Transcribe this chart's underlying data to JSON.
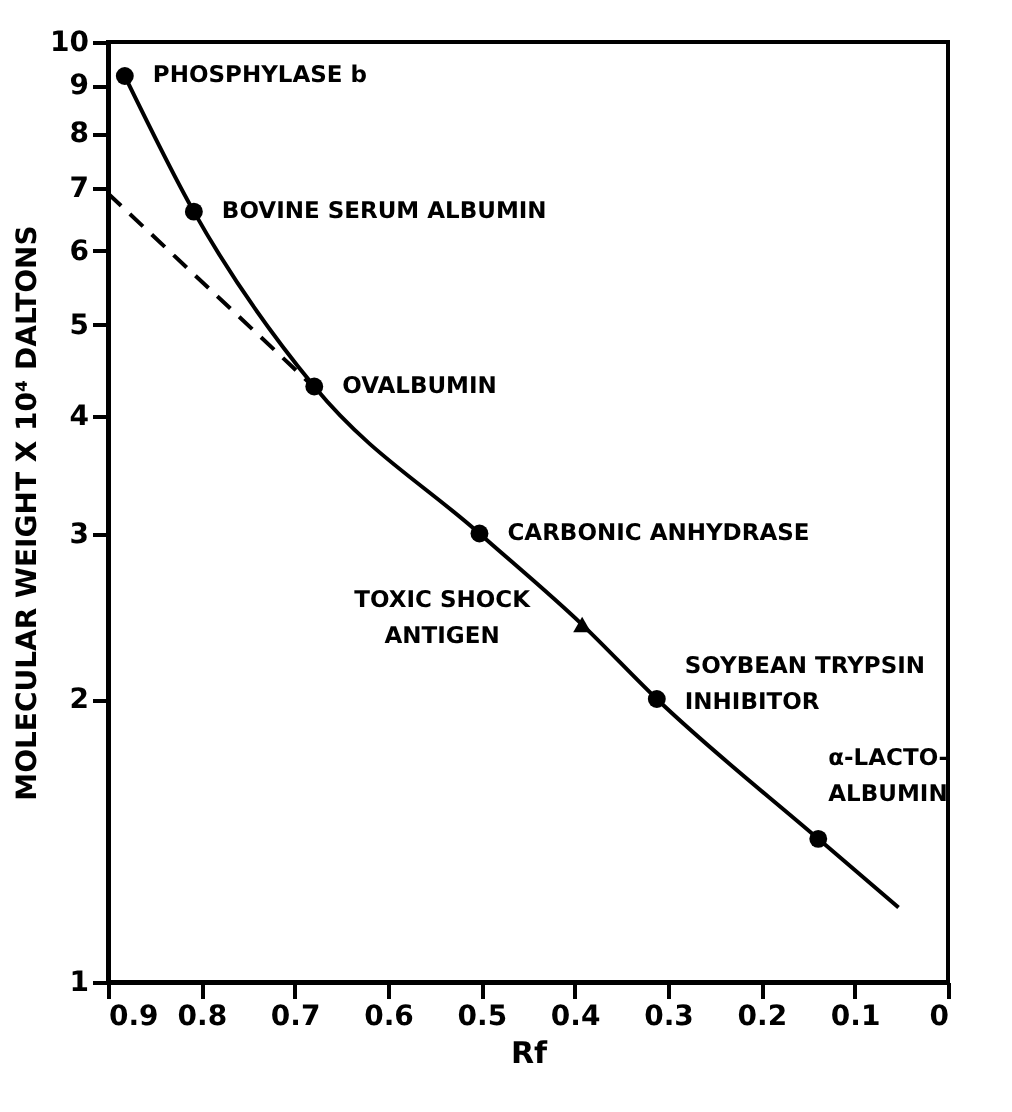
{
  "chart_data": {
    "type": "line",
    "xlabel": "Rf",
    "ylabel": "MOLECULAR WEIGHT X 10⁴ DALTONS",
    "xlim": [
      0.9,
      0
    ],
    "ylim": [
      1,
      10
    ],
    "log": "y",
    "grid": false,
    "xticks": [
      0.9,
      0.8,
      0.7,
      0.6,
      0.5,
      0.4,
      0.3,
      0.2,
      0.1,
      0
    ],
    "yticks": [
      1,
      2,
      3,
      4,
      5,
      6,
      7,
      8,
      9,
      10
    ],
    "series": [
      {
        "color": "#000000",
        "line_style": "solid",
        "marker": "none",
        "x": [
          0.882,
          0.808,
          0.679,
          0.502,
          0.392,
          0.312,
          0.139,
          0.053
        ],
        "values": [
          9.2,
          6.6,
          4.3,
          3.0,
          2.4,
          2.0,
          1.42,
          1.2
        ]
      },
      {
        "color": "#000000",
        "line_style": "dashed",
        "marker": "none",
        "x": [
          0.9,
          0.68
        ],
        "values": [
          6.9,
          4.3
        ]
      },
      {
        "type": "scatter",
        "color": "#000000",
        "marker": "circle",
        "x": [
          0.882,
          0.808,
          0.679,
          0.502,
          0.312,
          0.139
        ],
        "values": [
          9.2,
          6.6,
          4.3,
          3.0,
          2.0,
          1.42
        ]
      },
      {
        "type": "scatter",
        "color": "#000000",
        "marker": "triangle",
        "x": [
          0.392
        ],
        "values": [
          2.4
        ]
      }
    ],
    "annotations": [
      {
        "text": "PHOSPHYLASE b",
        "x": 0.882,
        "y": 9.2
      },
      {
        "text": "BOVINE SERUM ALBUMIN",
        "x": 0.808,
        "y": 6.6
      },
      {
        "text": "OVALBUMIN",
        "x": 0.679,
        "y": 4.3
      },
      {
        "text": "CARBONIC ANHYDRASE",
        "x": 0.502,
        "y": 3.0
      },
      {
        "text": "TOXIC SHOCK\nANTIGEN",
        "x": 0.392,
        "y": 2.4
      },
      {
        "text": "SOYBEAN TRYPSIN\nINHIBITOR",
        "x": 0.312,
        "y": 2.0
      },
      {
        "text": "α-LACTO-\nALBUMIN",
        "x": 0.139,
        "y": 1.42
      }
    ]
  }
}
